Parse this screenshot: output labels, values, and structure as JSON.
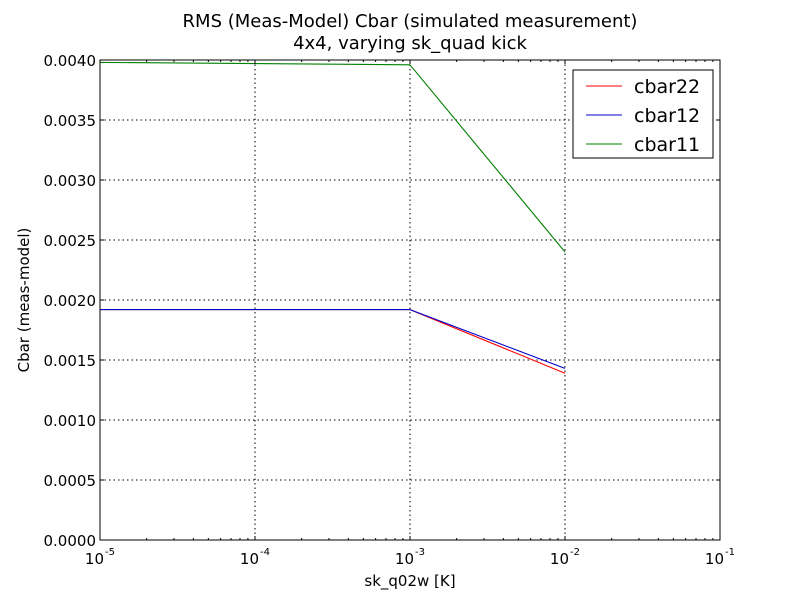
{
  "chart_data": {
    "type": "line",
    "title": "RMS (Meas-Model) Cbar (simulated measurement)",
    "subtitle": "4x4, varying sk_quad kick",
    "xlabel": "sk_q02w [K]",
    "ylabel": "Cbar (meas-model)",
    "xscale": "log",
    "xlim": [
      1e-05,
      0.1
    ],
    "ylim": [
      0,
      0.004
    ],
    "x_ticks": [
      {
        "base": "10",
        "exp": "-5",
        "value": 1e-05
      },
      {
        "base": "10",
        "exp": "-4",
        "value": 0.0001
      },
      {
        "base": "10",
        "exp": "-3",
        "value": 0.001
      },
      {
        "base": "10",
        "exp": "-2",
        "value": 0.01
      },
      {
        "base": "10",
        "exp": "-1",
        "value": 0.1
      }
    ],
    "y_ticks": [
      {
        "label": "0.0000",
        "value": 0
      },
      {
        "label": "0.0005",
        "value": 0.0005
      },
      {
        "label": "0.0010",
        "value": 0.001
      },
      {
        "label": "0.0015",
        "value": 0.0015
      },
      {
        "label": "0.0020",
        "value": 0.002
      },
      {
        "label": "0.0025",
        "value": 0.0025
      },
      {
        "label": "0.0030",
        "value": 0.003
      },
      {
        "label": "0.0035",
        "value": 0.0035
      },
      {
        "label": "0.0040",
        "value": 0.004
      }
    ],
    "grid": true,
    "legend_position": "top-right",
    "x": [
      1e-05,
      0.001,
      0.01
    ],
    "series": [
      {
        "name": "cbar22",
        "color": "#ff0000",
        "values": [
          0.00192,
          0.00192,
          0.00139
        ]
      },
      {
        "name": "cbar12",
        "color": "#0000cc",
        "values": [
          0.00192,
          0.00192,
          0.00143
        ]
      },
      {
        "name": "cbar11",
        "color": "#007f00",
        "values": [
          0.00398,
          0.00396,
          0.0024
        ]
      }
    ]
  }
}
